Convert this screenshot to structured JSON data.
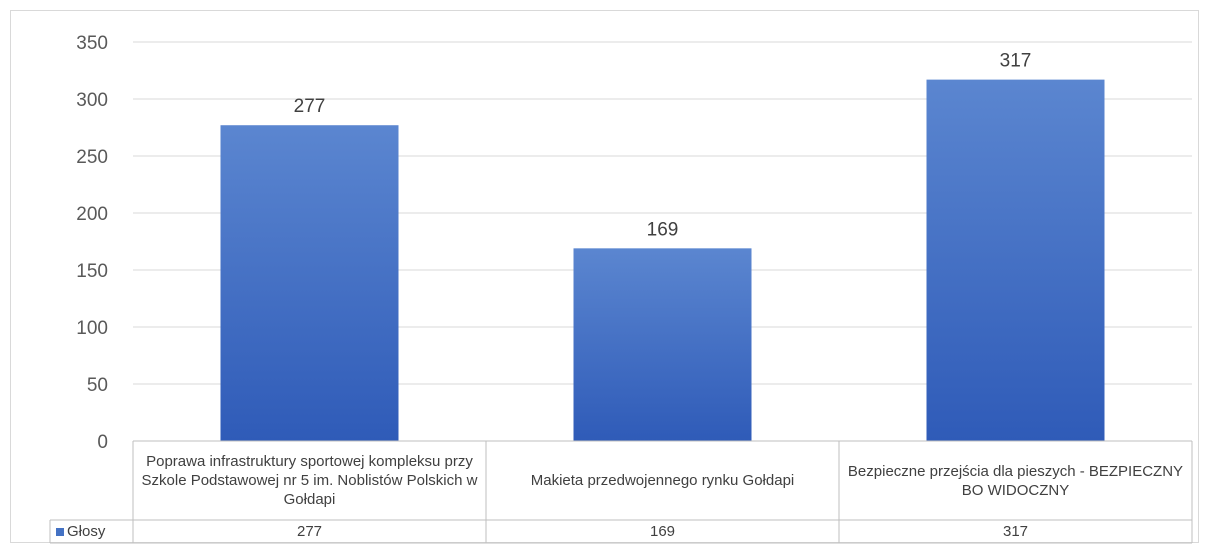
{
  "chart_data": {
    "type": "bar",
    "categories": [
      "Poprawa infrastruktury sportowej kompleksu przy Szkole Podstawowej nr 5 im. Noblistów Polskich w Gołdapi",
      "Makieta przedwojennego rynku Gołdapi",
      "Bezpieczne przejścia dla pieszych - BEZPIECZNY BO WIDOCZNY"
    ],
    "series": [
      {
        "name": "Głosy",
        "values": [
          277,
          169,
          317
        ]
      }
    ],
    "ylim": [
      0,
      350
    ],
    "yticks": [
      0,
      50,
      100,
      150,
      200,
      250,
      300,
      350
    ],
    "grid": true,
    "data_table": true,
    "colors": {
      "bar_top": "#5b86d0",
      "bar_bottom": "#2f5bb8",
      "legend": "#4472c4"
    }
  }
}
